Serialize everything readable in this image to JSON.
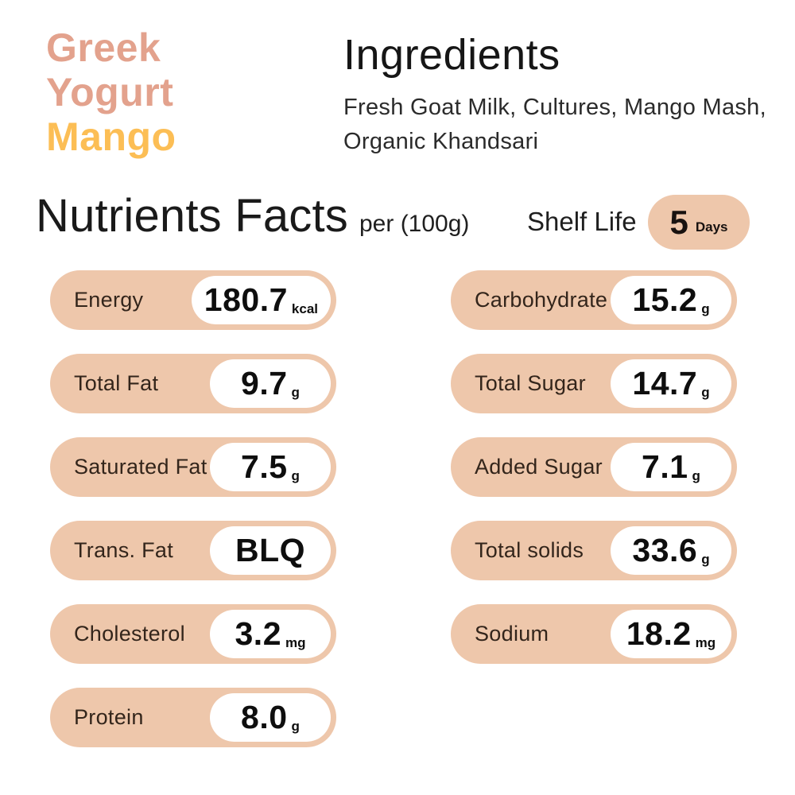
{
  "product": {
    "title_lines": [
      {
        "text": "Greek",
        "color": "#e3a28d"
      },
      {
        "text": "Yogurt",
        "color": "#e3a28d"
      },
      {
        "text": "Mango",
        "color": "#fcbe55"
      }
    ]
  },
  "ingredients": {
    "heading": "Ingredients",
    "text": "Fresh Goat Milk, Cultures, Mango Mash, Organic Khandsari"
  },
  "facts": {
    "heading": "Nutrients Facts",
    "per": "per (100g)",
    "shelf_life_label": "Shelf Life",
    "shelf_life_value": "5",
    "shelf_life_unit": "Days"
  },
  "nutrients": {
    "left": [
      {
        "label": "Energy",
        "value": "180.7",
        "unit": "kcal"
      },
      {
        "label": "Total Fat",
        "value": "9.7",
        "unit": "g"
      },
      {
        "label": "Saturated Fat",
        "value": "7.5",
        "unit": "g"
      },
      {
        "label": "Trans. Fat",
        "value": "BLQ",
        "unit": ""
      },
      {
        "label": "Cholesterol",
        "value": "3.2",
        "unit": "mg"
      },
      {
        "label": "Protein",
        "value": "8.0",
        "unit": "g"
      }
    ],
    "right": [
      {
        "label": "Carbohydrate",
        "value": "15.2",
        "unit": "g"
      },
      {
        "label": "Total Sugar",
        "value": "14.7",
        "unit": "g"
      },
      {
        "label": "Added Sugar",
        "value": "7.1",
        "unit": "g"
      },
      {
        "label": "Total solids",
        "value": "33.6",
        "unit": "g"
      },
      {
        "label": "Sodium",
        "value": "18.2",
        "unit": "mg"
      }
    ]
  },
  "colors": {
    "pill_peach": "#eec7ab",
    "brand_pink": "#e3a28d",
    "brand_orange": "#fcbe55",
    "text_dark": "#33251b"
  }
}
